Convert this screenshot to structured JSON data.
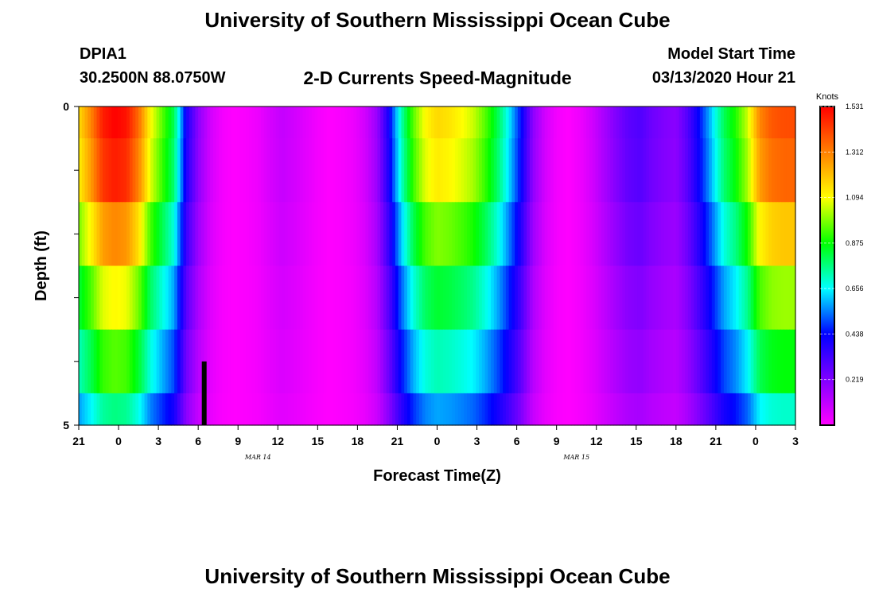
{
  "header": {
    "top_title": "University of Southern Mississippi Ocean Cube",
    "bottom_title": "University of Southern Mississippi Ocean Cube",
    "station_id": "DPIA1",
    "station_coords": "30.2500N 88.0750W",
    "chart_title": "2-D Currents Speed-Magnitude",
    "model_start_label": "Model Start Time",
    "model_start_value": "03/13/2020 Hour 21"
  },
  "chart_data": {
    "type": "heatmap",
    "title": "2-D Currents Speed-Magnitude",
    "xlabel": "Forecast Time(Z)",
    "ylabel": "Depth (ft)",
    "x_start_hour": 21,
    "x_step_hours": 1,
    "x_ticks": [
      "21",
      "0",
      "3",
      "6",
      "9",
      "12",
      "15",
      "18",
      "21",
      "0",
      "3",
      "6",
      "9",
      "12",
      "15",
      "18",
      "21",
      "0",
      "3"
    ],
    "date_labels": [
      {
        "label": "MAR  14",
        "tick_index": 4.5
      },
      {
        "label": "MAR  15",
        "tick_index": 12.5
      }
    ],
    "y_ticks": [
      "0",
      "5"
    ],
    "ylim": [
      0,
      5
    ],
    "colorbar": {
      "title": "Knots",
      "labels": [
        "1.531",
        "1.312",
        "1.094",
        "0.875",
        "0.656",
        "0.438",
        "0.219"
      ],
      "vmin": 0,
      "vmax": 1.531,
      "colors": [
        "#ff00ff",
        "#8000ff",
        "#0000ff",
        "#00ffff",
        "#00ff00",
        "#ffff00",
        "#ff8000",
        "#ff0000"
      ]
    },
    "depth_levels": [
      0,
      0.5,
      1.5,
      2.5,
      3.5,
      4.5
    ],
    "surface_speed": [
      1.15,
      1.3,
      1.48,
      1.53,
      1.5,
      1.35,
      1.1,
      0.95,
      0.8,
      0.4,
      0.2,
      0.08,
      0.02,
      0.0,
      0.01,
      0.03,
      0.07,
      0.1,
      0.08,
      0.05,
      0.02,
      0.0,
      0.01,
      0.03,
      0.08,
      0.18,
      0.42,
      0.72,
      0.95,
      1.1,
      1.16,
      1.14,
      1.1,
      1.05,
      0.95,
      0.82,
      0.65,
      0.45,
      0.2,
      0.08,
      0.02,
      0.0,
      0.03,
      0.08,
      0.15,
      0.22,
      0.28,
      0.3,
      0.25,
      0.22,
      0.2,
      0.3,
      0.45,
      0.62,
      0.8,
      0.9,
      1.05,
      1.3,
      1.38,
      1.4,
      1.4
    ],
    "depth_factor": [
      1.0,
      0.97,
      0.85,
      0.72,
      0.62,
      0.5
    ],
    "marker": {
      "hour_offset": 10.5,
      "depth_from": 4.0,
      "depth_to": 5.0
    }
  }
}
